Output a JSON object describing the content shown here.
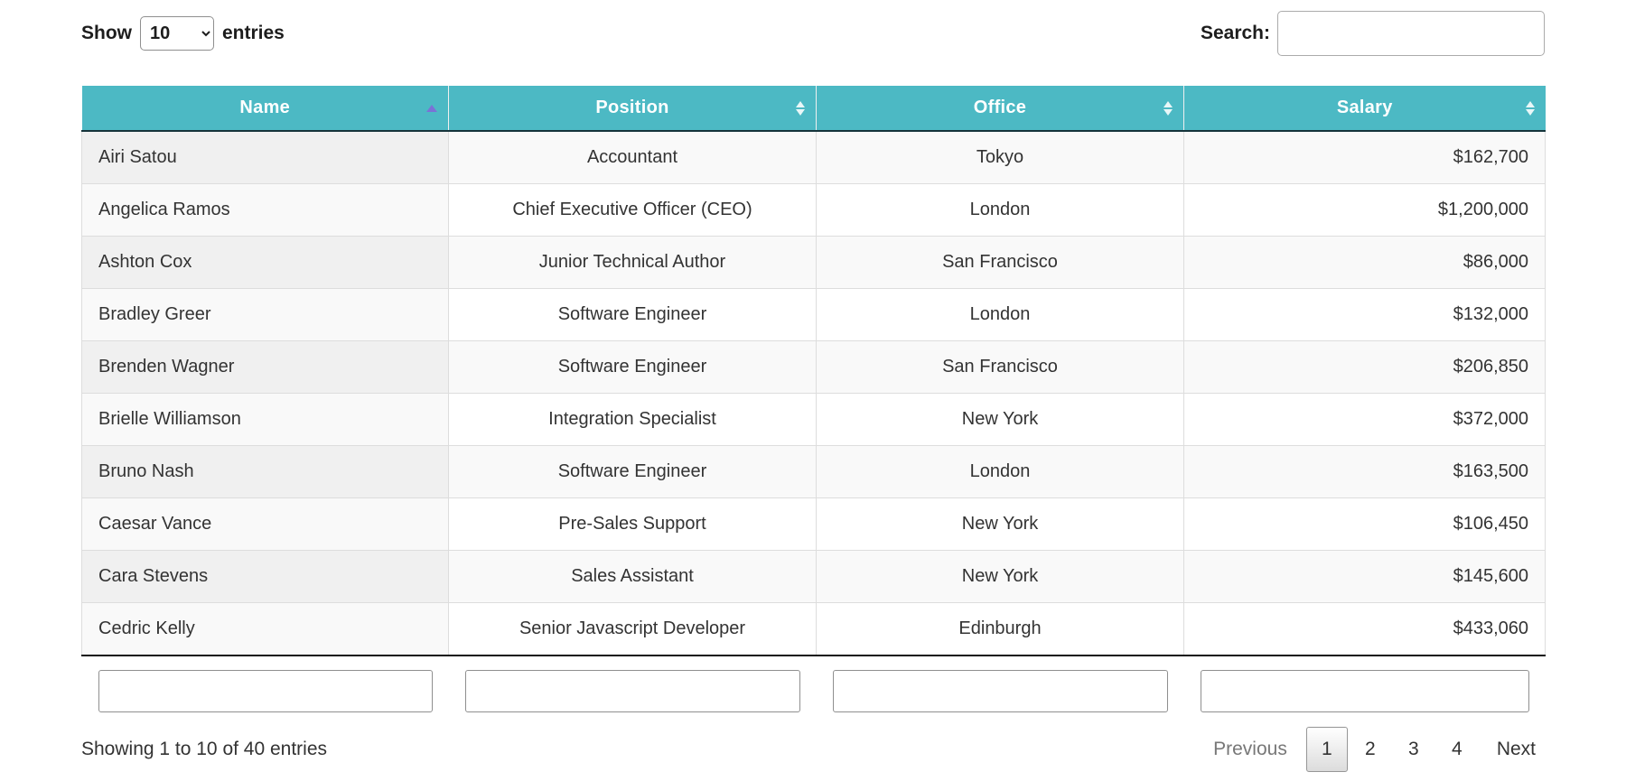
{
  "colors": {
    "header_bg": "#4CB9C4",
    "header_underline": "#16343b",
    "sort_asc_arrow": "#7A72D6",
    "sort_both_arrow": "#FFFFFF",
    "row_stripe": "#f9f9f9",
    "sorted_column_shade": "#f0f0f0",
    "table_bottom_border": "#111111",
    "body_text": "#333333",
    "disabled_pager_text": "#777777"
  },
  "controls": {
    "show_label": "Show",
    "page_length": "10",
    "entries_label": "entries",
    "search_label": "Search:",
    "search_value": "",
    "search_placeholder": ""
  },
  "table": {
    "columns": [
      {
        "key": "name",
        "label": "Name",
        "sort": "asc",
        "align": "left"
      },
      {
        "key": "position",
        "label": "Position",
        "sort": "both",
        "align": "center"
      },
      {
        "key": "office",
        "label": "Office",
        "sort": "both",
        "align": "center"
      },
      {
        "key": "salary",
        "label": "Salary",
        "sort": "both",
        "align": "right"
      }
    ],
    "rows": [
      {
        "name": "Airi Satou",
        "position": "Accountant",
        "office": "Tokyo",
        "salary": "$162,700"
      },
      {
        "name": "Angelica Ramos",
        "position": "Chief Executive Officer (CEO)",
        "office": "London",
        "salary": "$1,200,000"
      },
      {
        "name": "Ashton Cox",
        "position": "Junior Technical Author",
        "office": "San Francisco",
        "salary": "$86,000"
      },
      {
        "name": "Bradley Greer",
        "position": "Software Engineer",
        "office": "London",
        "salary": "$132,000"
      },
      {
        "name": "Brenden Wagner",
        "position": "Software Engineer",
        "office": "San Francisco",
        "salary": "$206,850"
      },
      {
        "name": "Brielle Williamson",
        "position": "Integration Specialist",
        "office": "New York",
        "salary": "$372,000"
      },
      {
        "name": "Bruno Nash",
        "position": "Software Engineer",
        "office": "London",
        "salary": "$163,500"
      },
      {
        "name": "Caesar Vance",
        "position": "Pre-Sales Support",
        "office": "New York",
        "salary": "$106,450"
      },
      {
        "name": "Cara Stevens",
        "position": "Sales Assistant",
        "office": "New York",
        "salary": "$145,600"
      },
      {
        "name": "Cedric Kelly",
        "position": "Senior Javascript Developer",
        "office": "Edinburgh",
        "salary": "$433,060"
      }
    ]
  },
  "footer": {
    "filter_values": [
      "",
      "",
      "",
      ""
    ]
  },
  "status": {
    "summary": "Showing 1 to 10 of 40 entries"
  },
  "pagination": {
    "previous_label": "Previous",
    "pages": [
      "1",
      "2",
      "3",
      "4"
    ],
    "current_page": "1",
    "next_label": "Next"
  }
}
